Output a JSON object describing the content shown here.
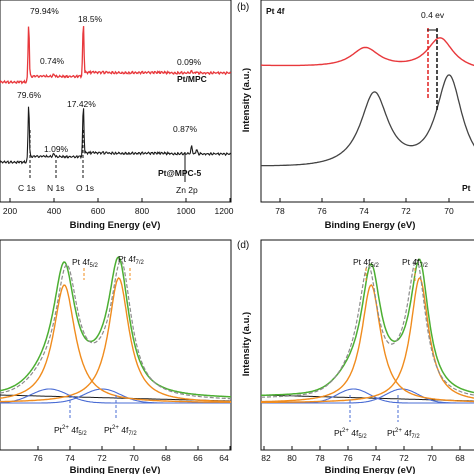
{
  "colors": {
    "survey_red": "#e8383c",
    "survey_black": "#1a1a1a",
    "fit_green": "#4caf32",
    "fit_orange": "#f08c1e",
    "fit_blue": "#4a6cd4",
    "fit_gray_dash": "#8c8c8c",
    "label_orange": "#e07b00",
    "label_blue": "#2f4fb8",
    "marker_red": "#e02020"
  },
  "panels": {
    "a": {
      "xlabel": "Binding Energy (eV)",
      "xticks": [
        "200",
        "400",
        "600",
        "800",
        "1000",
        "1200"
      ],
      "annotations": {
        "top_c": "79.94%",
        "top_n": "0.74%",
        "top_o": "18.5%",
        "top_zn": "0.09%",
        "top_name": "Pt/MPC",
        "bot_c": "79.6%",
        "bot_n": "1.09%",
        "bot_o": "17.42%",
        "bot_zn": "0.87%",
        "bot_name": "Pt@MPC-5",
        "c1s": "C 1s",
        "n1s": "N 1s",
        "o1s": "O 1s",
        "zn2p": "Zn 2p"
      }
    },
    "b": {
      "tag": "(b)",
      "title": "Pt 4f",
      "ylabel": "Intensity (a.u.)",
      "xlabel": "Binding Energy (eV)",
      "xticks": [
        "78",
        "76",
        "74",
        "72",
        "70"
      ],
      "shift": "0.4 ev",
      "legend_partial": "Pt"
    },
    "c": {
      "xlabel": "Binding Energy (eV)",
      "xticks": [
        "76",
        "74",
        "72",
        "70",
        "68",
        "66",
        "64"
      ],
      "pt_peak_a": "Pt 4f",
      "pt_peak_a_sub": "5/2",
      "pt_peak_b": "Pt 4f",
      "pt_peak_b_sub": "7/2",
      "pt2_a": "Pt",
      "pt2_a_sup": "2+",
      "pt2_a_rest": " 4f",
      "pt2_a_sub": "5/2",
      "pt2_b": "Pt",
      "pt2_b_sup": "2+",
      "pt2_b_rest": " 4f",
      "pt2_b_sub": "7/2"
    },
    "d": {
      "tag": "(d)",
      "ylabel": "Intensity (a.u.)",
      "xlabel": "Binding Energy (eV)",
      "xticks": [
        "82",
        "80",
        "78",
        "76",
        "74",
        "72",
        "70",
        "68"
      ],
      "pt_peak_a": "Pt 4f",
      "pt_peak_a_sub": "5/2",
      "pt_peak_b": "Pt 4f",
      "pt_peak_b_sub": "7/2",
      "pt2_a": "Pt",
      "pt2_a_sup": "2+",
      "pt2_a_rest": " 4f",
      "pt2_a_sub": "5/2",
      "pt2_b": "Pt",
      "pt2_b_sup": "2+",
      "pt2_b_rest": " 4f",
      "pt2_b_sub": "7/2"
    }
  },
  "chart_data": [
    {
      "panel": "a",
      "type": "line",
      "xlabel": "Binding Energy (eV)",
      "xlim": [
        150,
        1200
      ],
      "series": [
        {
          "name": "Pt/MPC",
          "peaks_eV": [
            284.8,
            399.5,
            532.0,
            1022.0
          ],
          "composition": [
            "79.94%",
            "0.74%",
            "18.5%",
            "0.09%"
          ]
        },
        {
          "name": "Pt@MPC-5",
          "peaks_eV": [
            284.8,
            399.5,
            532.0,
            1022.0
          ],
          "composition": [
            "79.6%",
            "1.09%",
            "17.42%",
            "0.87%"
          ]
        }
      ],
      "annotations": [
        "C 1s",
        "N 1s",
        "O 1s",
        "Zn 2p"
      ]
    },
    {
      "panel": "b",
      "type": "line",
      "title": "Pt 4f",
      "xlabel": "Binding Energy (eV)",
      "ylabel": "Intensity (a.u.)",
      "xlim": [
        79,
        69.3
      ],
      "xticks": [
        78,
        76,
        74,
        72,
        70
      ],
      "series": [
        {
          "name": "Pt/MPC",
          "peaks_eV": [
            74.4,
            71.1
          ]
        },
        {
          "name": "Pt",
          "peaks_eV": [
            74.0,
            70.7
          ]
        }
      ],
      "annotations": [
        "0.4 ev"
      ]
    },
    {
      "panel": "c",
      "type": "line",
      "xlabel": "Binding Energy (eV)",
      "xlim": [
        78,
        64
      ],
      "xticks": [
        76,
        74,
        72,
        70,
        68,
        66,
        64
      ],
      "peaks_eV": {
        "Pt 4f5/2": 74.1,
        "Pt 4f7/2": 70.8,
        "Pt2+ 4f5/2": 75.0,
        "Pt2+ 4f7/2": 71.8
      }
    },
    {
      "panel": "d",
      "type": "line",
      "xlabel": "Binding Energy (eV)",
      "ylabel": "Intensity (a.u.)",
      "xlim": [
        82,
        67.5
      ],
      "xticks": [
        82,
        80,
        78,
        76,
        74,
        72,
        70,
        68
      ],
      "peaks_eV": {
        "Pt 4f5/2": 74.5,
        "Pt 4f7/2": 71.2,
        "Pt2+ 4f5/2": 75.7,
        "Pt2+ 4f7/2": 72.4
      }
    }
  ]
}
